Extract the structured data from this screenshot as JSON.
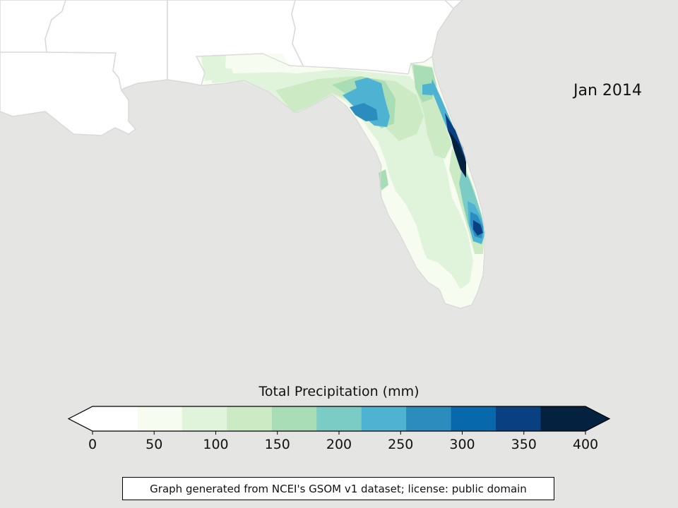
{
  "map": {
    "date_label": "Jan 2014",
    "colors": {
      "background_ocean": "#e5e5e4",
      "land_other": "#ffffff",
      "state_border": "#d9d9d9"
    }
  },
  "colorbar": {
    "title": "Total Precipitation (mm)",
    "ticks": [
      "0",
      "50",
      "100",
      "150",
      "200",
      "250",
      "300",
      "350",
      "400"
    ],
    "range": [
      0,
      400
    ],
    "extend": "both",
    "bins_mm": [
      0,
      36.4,
      72.7,
      109.1,
      145.5,
      181.8,
      218.2,
      254.5,
      290.9,
      327.3,
      363.6,
      400
    ],
    "colors": [
      "#ffffff",
      "#f7fcf0",
      "#e0f3db",
      "#ccebc5",
      "#a8ddb5",
      "#7bccc4",
      "#4eb3d3",
      "#2b8cbe",
      "#0868ac",
      "#084081",
      "#04213f"
    ]
  },
  "credit": "Graph generated from NCEI's GSOM v1 dataset; license: public domain"
}
